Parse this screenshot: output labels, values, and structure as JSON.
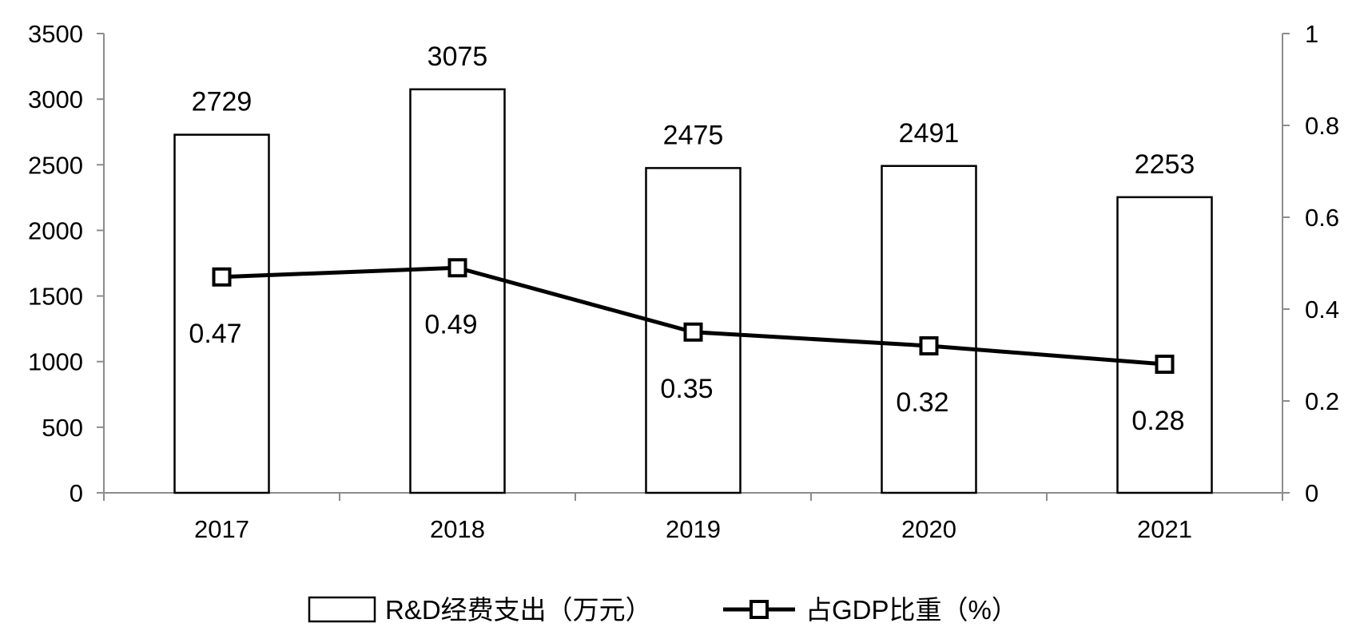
{
  "chart_data": {
    "type": "bar",
    "categories": [
      "2017",
      "2018",
      "2019",
      "2020",
      "2021"
    ],
    "series": [
      {
        "name": "R&D经费支出（万元）",
        "type": "bar",
        "axis": "left",
        "values": [
          2729,
          3075,
          2475,
          2491,
          2253
        ]
      },
      {
        "name": "占GDP比重（%）",
        "type": "line",
        "axis": "right",
        "marker": "square",
        "values": [
          0.47,
          0.49,
          0.35,
          0.32,
          0.28
        ]
      }
    ],
    "y_left": {
      "range": [
        0,
        3500
      ],
      "ticks": [
        "0",
        "500",
        "1000",
        "1500",
        "2000",
        "2500",
        "3000",
        "3500"
      ]
    },
    "y_right": {
      "range": [
        0,
        1
      ],
      "ticks": [
        "0",
        "0.2",
        "0.4",
        "0.6",
        "0.8",
        "1"
      ]
    },
    "grid": false,
    "legend_position": "bottom",
    "colors": {
      "bar_fill": "#ffffff",
      "bar_stroke": "#000000",
      "line": "#000000",
      "axis": "#8c8c8c"
    }
  }
}
